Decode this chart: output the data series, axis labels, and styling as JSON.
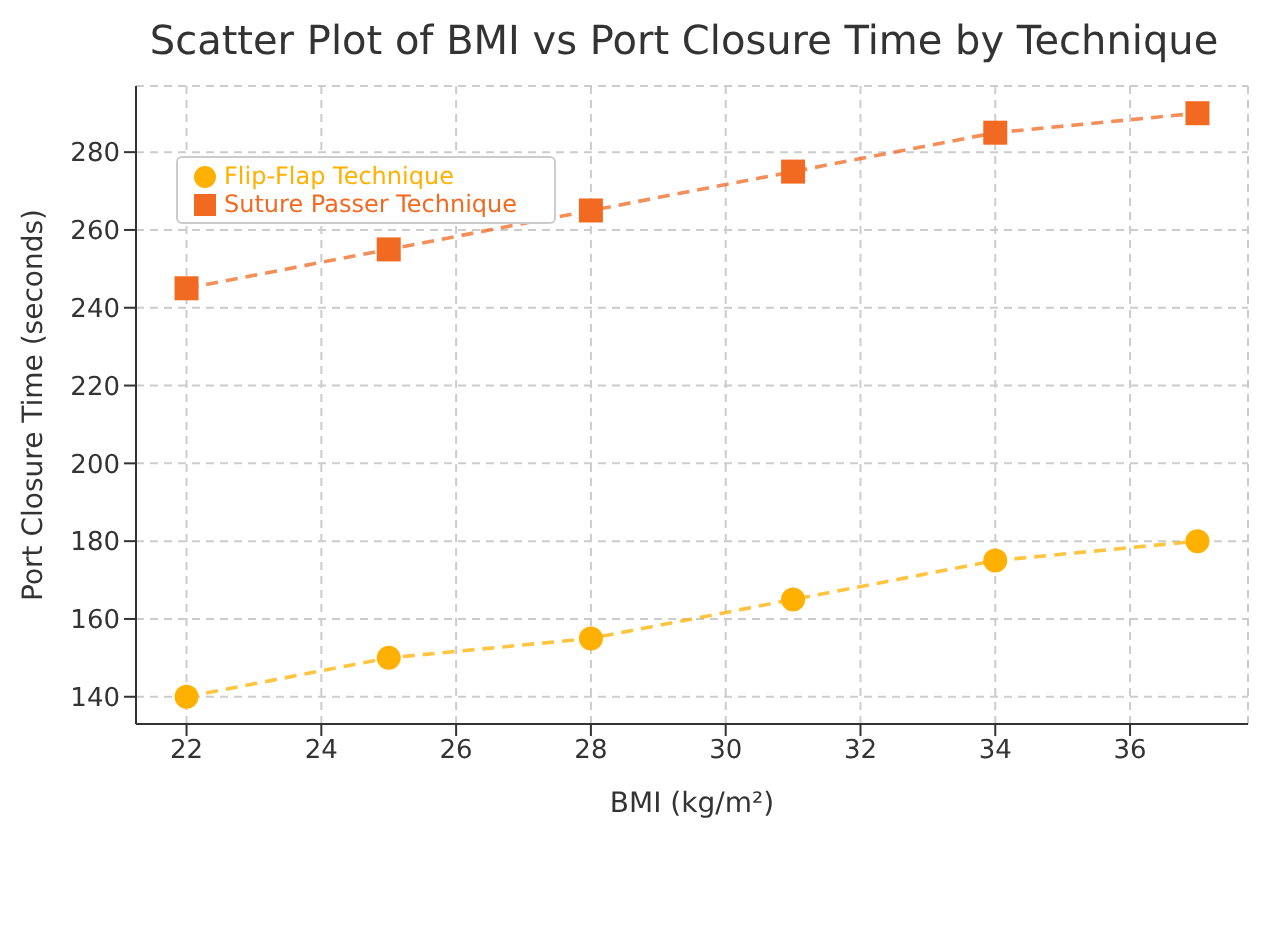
{
  "chart_data": {
    "type": "line",
    "title": "Scatter Plot of BMI vs Port Closure Time by Technique",
    "xlabel": "BMI (kg/m²)",
    "ylabel": "Port Closure Time (seconds)",
    "x": [
      22,
      25,
      28,
      31,
      34,
      37
    ],
    "series": [
      {
        "name": "Flip-Flap Technique",
        "color": "#ffb000",
        "values": [
          140,
          150,
          155,
          165,
          175,
          180
        ],
        "marker": "circle"
      },
      {
        "name": "Suture Passer Technique",
        "color": "#f26a21",
        "values": [
          245,
          255,
          265,
          275,
          285,
          290
        ],
        "marker": "square"
      }
    ],
    "xlim": [
      21.25,
      37.75
    ],
    "xticks": [
      22,
      24,
      26,
      28,
      30,
      32,
      34,
      36
    ],
    "ylim": [
      133,
      297
    ],
    "yticks": [
      140,
      160,
      180,
      200,
      220,
      240,
      260,
      280
    ],
    "grid": true,
    "legend": "top left",
    "line_style": "dashed"
  }
}
